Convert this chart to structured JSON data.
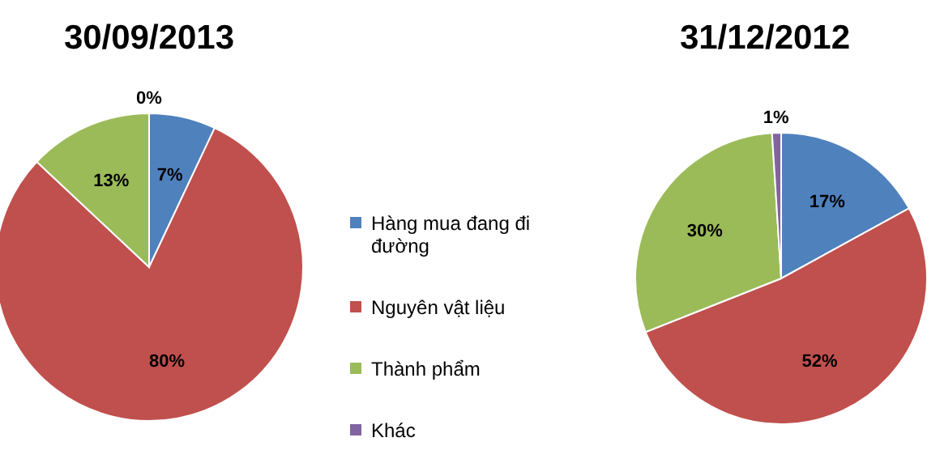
{
  "chart_data": [
    {
      "type": "pie",
      "title": "30/09/2013",
      "categories": [
        "Hàng mua đang đi đường",
        "Nguyên vật liệu",
        "Thành phẩm",
        "Khác"
      ],
      "values": [
        7,
        80,
        13,
        0
      ],
      "value_labels": [
        "7%",
        "80%",
        "13%",
        "0%"
      ],
      "colors": [
        "#4f81bd",
        "#c0504d",
        "#9bbb59",
        "#8064a2"
      ],
      "legend": "right"
    },
    {
      "type": "pie",
      "title": "31/12/2012",
      "categories": [
        null,
        null,
        null,
        null
      ],
      "values": [
        17,
        52,
        30,
        1
      ],
      "value_labels": [
        "17%",
        "52%",
        "30%",
        "1%"
      ],
      "colors": [
        "#4f81bd",
        "#c0504d",
        "#9bbb59",
        "#8064a2"
      ]
    }
  ]
}
